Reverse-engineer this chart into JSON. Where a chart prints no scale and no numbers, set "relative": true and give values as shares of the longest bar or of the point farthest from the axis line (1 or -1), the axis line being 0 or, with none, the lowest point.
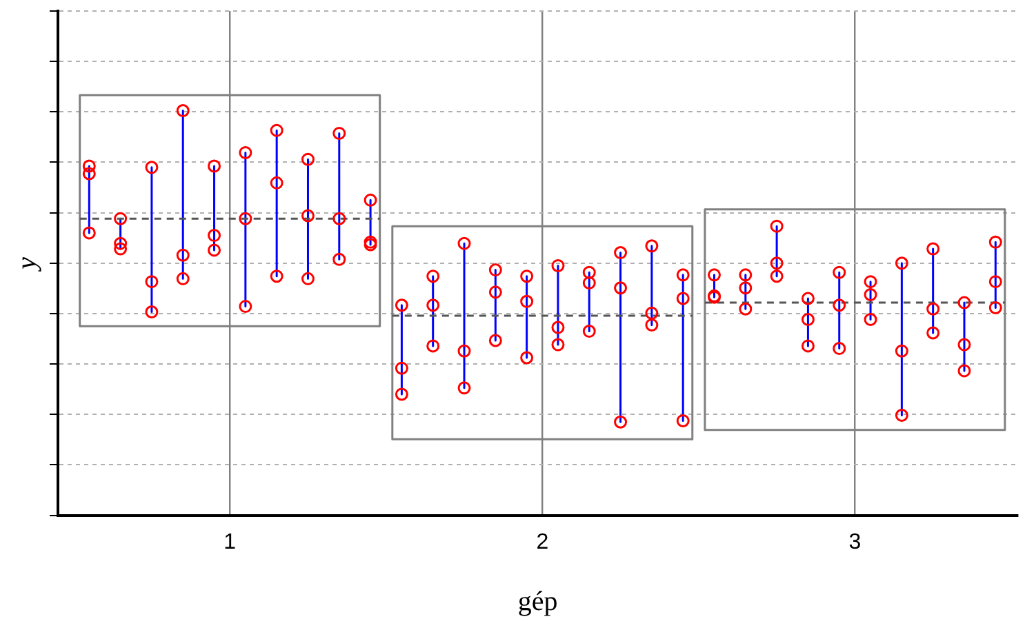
{
  "chart_data": {
    "type": "scatter",
    "xlabel": "gép",
    "ylabel": "y",
    "relative": true,
    "xlim": [
      0.45,
      3.52
    ],
    "xticks": [
      1,
      2,
      3
    ],
    "grid": true,
    "legend": false,
    "marker": "circle",
    "series": [
      {
        "type": "line",
        "color": "#808080",
        "marker": "none",
        "line_style": "solid",
        "x": [
          0.52,
          1.48
        ],
        "values": [
          1.0,
          1.0
        ]
      },
      {
        "type": "line",
        "color": "#808080",
        "marker": "none",
        "line_style": "solid",
        "x": [
          0.52,
          1.48
        ],
        "values": [
          0.45,
          0.45
        ]
      },
      {
        "type": "line",
        "color": "#808080",
        "marker": "none",
        "line_style": "solid",
        "x": [
          0.52,
          0.52
        ],
        "values": [
          1.0,
          0.45
        ]
      },
      {
        "type": "line",
        "color": "#808080",
        "marker": "none",
        "line_style": "solid",
        "x": [
          1.48,
          1.48
        ],
        "values": [
          1.0,
          0.45
        ]
      },
      {
        "type": "line",
        "color": "#808080",
        "marker": "none",
        "line_style": "solid",
        "x": [
          1.52,
          2.48
        ],
        "values": [
          0.688,
          0.688
        ]
      },
      {
        "type": "line",
        "color": "#808080",
        "marker": "none",
        "line_style": "solid",
        "x": [
          1.52,
          2.48
        ],
        "values": [
          0.181,
          0.181
        ]
      },
      {
        "type": "line",
        "color": "#808080",
        "marker": "none",
        "line_style": "solid",
        "x": [
          1.52,
          1.52
        ],
        "values": [
          0.688,
          0.181
        ]
      },
      {
        "type": "line",
        "color": "#808080",
        "marker": "none",
        "line_style": "solid",
        "x": [
          2.48,
          2.48
        ],
        "values": [
          0.688,
          0.181
        ]
      },
      {
        "type": "line",
        "color": "#808080",
        "marker": "none",
        "line_style": "solid",
        "x": [
          2.52,
          3.48
        ],
        "values": [
          0.728,
          0.728
        ]
      },
      {
        "type": "line",
        "color": "#808080",
        "marker": "none",
        "line_style": "solid",
        "x": [
          2.52,
          3.48
        ],
        "values": [
          0.203,
          0.203
        ]
      },
      {
        "type": "line",
        "color": "#808080",
        "marker": "none",
        "line_style": "solid",
        "x": [
          2.52,
          2.52
        ],
        "values": [
          0.728,
          0.203
        ]
      },
      {
        "type": "line",
        "color": "#808080",
        "marker": "none",
        "line_style": "solid",
        "x": [
          3.48,
          3.48
        ],
        "values": [
          0.728,
          0.203
        ]
      },
      {
        "type": "line",
        "color": "#0000ff",
        "marker": "none",
        "line_style": "solid",
        "x": [
          0.55,
          0.55
        ],
        "values": [
          0.831,
          0.672
        ]
      },
      {
        "type": "line",
        "color": "#0000ff",
        "marker": "none",
        "line_style": "solid",
        "x": [
          0.65,
          0.65
        ],
        "values": [
          0.706,
          0.634
        ]
      },
      {
        "type": "line",
        "color": "#0000ff",
        "marker": "none",
        "line_style": "solid",
        "x": [
          0.75,
          0.75
        ],
        "values": [
          0.828,
          0.484
        ]
      },
      {
        "type": "line",
        "color": "#0000ff",
        "marker": "none",
        "line_style": "solid",
        "x": [
          0.85,
          0.85
        ],
        "values": [
          0.963,
          0.563
        ]
      },
      {
        "type": "line",
        "color": "#0000ff",
        "marker": "none",
        "line_style": "solid",
        "x": [
          0.95,
          0.95
        ],
        "values": [
          0.831,
          0.631
        ]
      },
      {
        "type": "line",
        "color": "#0000ff",
        "marker": "none",
        "line_style": "solid",
        "x": [
          1.05,
          1.05
        ],
        "values": [
          0.863,
          0.497
        ]
      },
      {
        "type": "line",
        "color": "#0000ff",
        "marker": "none",
        "line_style": "solid",
        "x": [
          1.15,
          1.15
        ],
        "values": [
          0.916,
          0.569
        ]
      },
      {
        "type": "line",
        "color": "#0000ff",
        "marker": "none",
        "line_style": "solid",
        "x": [
          1.25,
          1.25
        ],
        "values": [
          0.847,
          0.563
        ]
      },
      {
        "type": "line",
        "color": "#0000ff",
        "marker": "none",
        "line_style": "solid",
        "x": [
          1.35,
          1.35
        ],
        "values": [
          0.909,
          0.609
        ]
      },
      {
        "type": "line",
        "color": "#0000ff",
        "marker": "none",
        "line_style": "solid",
        "x": [
          1.45,
          1.45
        ],
        "values": [
          0.75,
          0.644
        ]
      },
      {
        "type": "line",
        "color": "#0000ff",
        "marker": "none",
        "line_style": "solid",
        "x": [
          1.55,
          1.55
        ],
        "values": [
          0.5,
          0.288
        ]
      },
      {
        "type": "line",
        "color": "#0000ff",
        "marker": "none",
        "line_style": "solid",
        "x": [
          1.65,
          1.65
        ],
        "values": [
          0.569,
          0.403
        ]
      },
      {
        "type": "line",
        "color": "#0000ff",
        "marker": "none",
        "line_style": "solid",
        "x": [
          1.75,
          1.75
        ],
        "values": [
          0.647,
          0.303
        ]
      },
      {
        "type": "line",
        "color": "#0000ff",
        "marker": "none",
        "line_style": "solid",
        "x": [
          1.85,
          1.85
        ],
        "values": [
          0.584,
          0.416
        ]
      },
      {
        "type": "line",
        "color": "#0000ff",
        "marker": "none",
        "line_style": "solid",
        "x": [
          1.95,
          1.95
        ],
        "values": [
          0.569,
          0.375
        ]
      },
      {
        "type": "line",
        "color": "#0000ff",
        "marker": "none",
        "line_style": "solid",
        "x": [
          2.05,
          2.05
        ],
        "values": [
          0.594,
          0.406
        ]
      },
      {
        "type": "line",
        "color": "#0000ff",
        "marker": "none",
        "line_style": "solid",
        "x": [
          2.15,
          2.15
        ],
        "values": [
          0.578,
          0.438
        ]
      },
      {
        "type": "line",
        "color": "#0000ff",
        "marker": "none",
        "line_style": "solid",
        "x": [
          2.25,
          2.25
        ],
        "values": [
          0.625,
          0.222
        ]
      },
      {
        "type": "line",
        "color": "#0000ff",
        "marker": "none",
        "line_style": "solid",
        "x": [
          2.35,
          2.35
        ],
        "values": [
          0.641,
          0.453
        ]
      },
      {
        "type": "line",
        "color": "#0000ff",
        "marker": "none",
        "line_style": "solid",
        "x": [
          2.45,
          2.45
        ],
        "values": [
          0.572,
          0.225
        ]
      },
      {
        "type": "line",
        "color": "#0000ff",
        "marker": "none",
        "line_style": "solid",
        "x": [
          2.55,
          2.55
        ],
        "values": [
          0.572,
          0.519
        ]
      },
      {
        "type": "line",
        "color": "#0000ff",
        "marker": "none",
        "line_style": "solid",
        "x": [
          2.65,
          2.65
        ],
        "values": [
          0.572,
          0.491
        ]
      },
      {
        "type": "line",
        "color": "#0000ff",
        "marker": "none",
        "line_style": "solid",
        "x": [
          2.75,
          2.75
        ],
        "values": [
          0.688,
          0.569
        ]
      },
      {
        "type": "line",
        "color": "#0000ff",
        "marker": "none",
        "line_style": "solid",
        "x": [
          2.85,
          2.85
        ],
        "values": [
          0.516,
          0.403
        ]
      },
      {
        "type": "line",
        "color": "#0000ff",
        "marker": "none",
        "line_style": "solid",
        "x": [
          2.95,
          2.95
        ],
        "values": [
          0.578,
          0.397
        ]
      },
      {
        "type": "line",
        "color": "#0000ff",
        "marker": "none",
        "line_style": "solid",
        "x": [
          3.05,
          3.05
        ],
        "values": [
          0.556,
          0.466
        ]
      },
      {
        "type": "line",
        "color": "#0000ff",
        "marker": "none",
        "line_style": "solid",
        "x": [
          3.15,
          3.15
        ],
        "values": [
          0.6,
          0.238
        ]
      },
      {
        "type": "line",
        "color": "#0000ff",
        "marker": "none",
        "line_style": "solid",
        "x": [
          3.25,
          3.25
        ],
        "values": [
          0.634,
          0.434
        ]
      },
      {
        "type": "line",
        "color": "#0000ff",
        "marker": "none",
        "line_style": "solid",
        "x": [
          3.35,
          3.35
        ],
        "values": [
          0.506,
          0.344
        ]
      },
      {
        "type": "line",
        "color": "#0000ff",
        "marker": "none",
        "line_style": "solid",
        "x": [
          3.45,
          3.45
        ],
        "values": [
          0.65,
          0.494
        ]
      },
      {
        "type": "line",
        "color": "#555555",
        "marker": "none",
        "line_style": "dashed",
        "x": [
          0.52,
          1.48
        ],
        "values": [
          0.706,
          0.706
        ]
      },
      {
        "type": "line",
        "color": "#555555",
        "marker": "none",
        "line_style": "dashed",
        "x": [
          1.52,
          2.48
        ],
        "values": [
          0.475,
          0.475
        ]
      },
      {
        "type": "line",
        "color": "#555555",
        "marker": "none",
        "line_style": "dashed",
        "x": [
          2.52,
          3.48
        ],
        "values": [
          0.506,
          0.506
        ]
      },
      {
        "color": "#ff0000",
        "x": [
          0.55,
          0.55,
          0.55,
          0.65,
          0.65,
          0.65,
          0.75,
          0.75,
          0.75,
          0.85,
          0.85,
          0.85,
          0.95,
          0.95,
          0.95,
          1.05,
          1.05,
          1.05,
          1.15,
          1.15,
          1.15,
          1.25,
          1.25,
          1.25,
          1.35,
          1.35,
          1.35,
          1.45,
          1.45,
          1.45,
          1.55,
          1.55,
          1.55,
          1.65,
          1.65,
          1.65,
          1.75,
          1.75,
          1.75,
          1.85,
          1.85,
          1.85,
          1.95,
          1.95,
          1.95,
          2.05,
          2.05,
          2.05,
          2.15,
          2.15,
          2.15,
          2.25,
          2.25,
          2.25,
          2.35,
          2.35,
          2.35,
          2.45,
          2.45,
          2.45,
          2.55,
          2.55,
          2.55,
          2.65,
          2.65,
          2.65,
          2.75,
          2.75,
          2.75,
          2.85,
          2.85,
          2.85,
          2.95,
          2.95,
          2.95,
          3.05,
          3.05,
          3.05,
          3.15,
          3.15,
          3.15,
          3.25,
          3.25,
          3.25,
          3.35,
          3.35,
          3.35,
          3.45,
          3.45,
          3.45
        ],
        "values": [
          0.831,
          0.813,
          0.672,
          0.706,
          0.647,
          0.634,
          0.828,
          0.556,
          0.484,
          0.963,
          0.619,
          0.563,
          0.831,
          0.666,
          0.631,
          0.863,
          0.706,
          0.497,
          0.916,
          0.791,
          0.569,
          0.847,
          0.713,
          0.563,
          0.909,
          0.706,
          0.609,
          0.75,
          0.65,
          0.644,
          0.5,
          0.35,
          0.288,
          0.569,
          0.5,
          0.403,
          0.647,
          0.391,
          0.303,
          0.584,
          0.531,
          0.416,
          0.569,
          0.509,
          0.375,
          0.594,
          0.447,
          0.406,
          0.578,
          0.553,
          0.438,
          0.625,
          0.541,
          0.222,
          0.641,
          0.481,
          0.453,
          0.572,
          0.516,
          0.225,
          0.572,
          0.522,
          0.519,
          0.572,
          0.541,
          0.491,
          0.688,
          0.6,
          0.569,
          0.516,
          0.466,
          0.403,
          0.578,
          0.5,
          0.397,
          0.556,
          0.525,
          0.466,
          0.6,
          0.391,
          0.238,
          0.634,
          0.491,
          0.434,
          0.506,
          0.406,
          0.344,
          0.65,
          0.556,
          0.494
        ]
      }
    ]
  }
}
